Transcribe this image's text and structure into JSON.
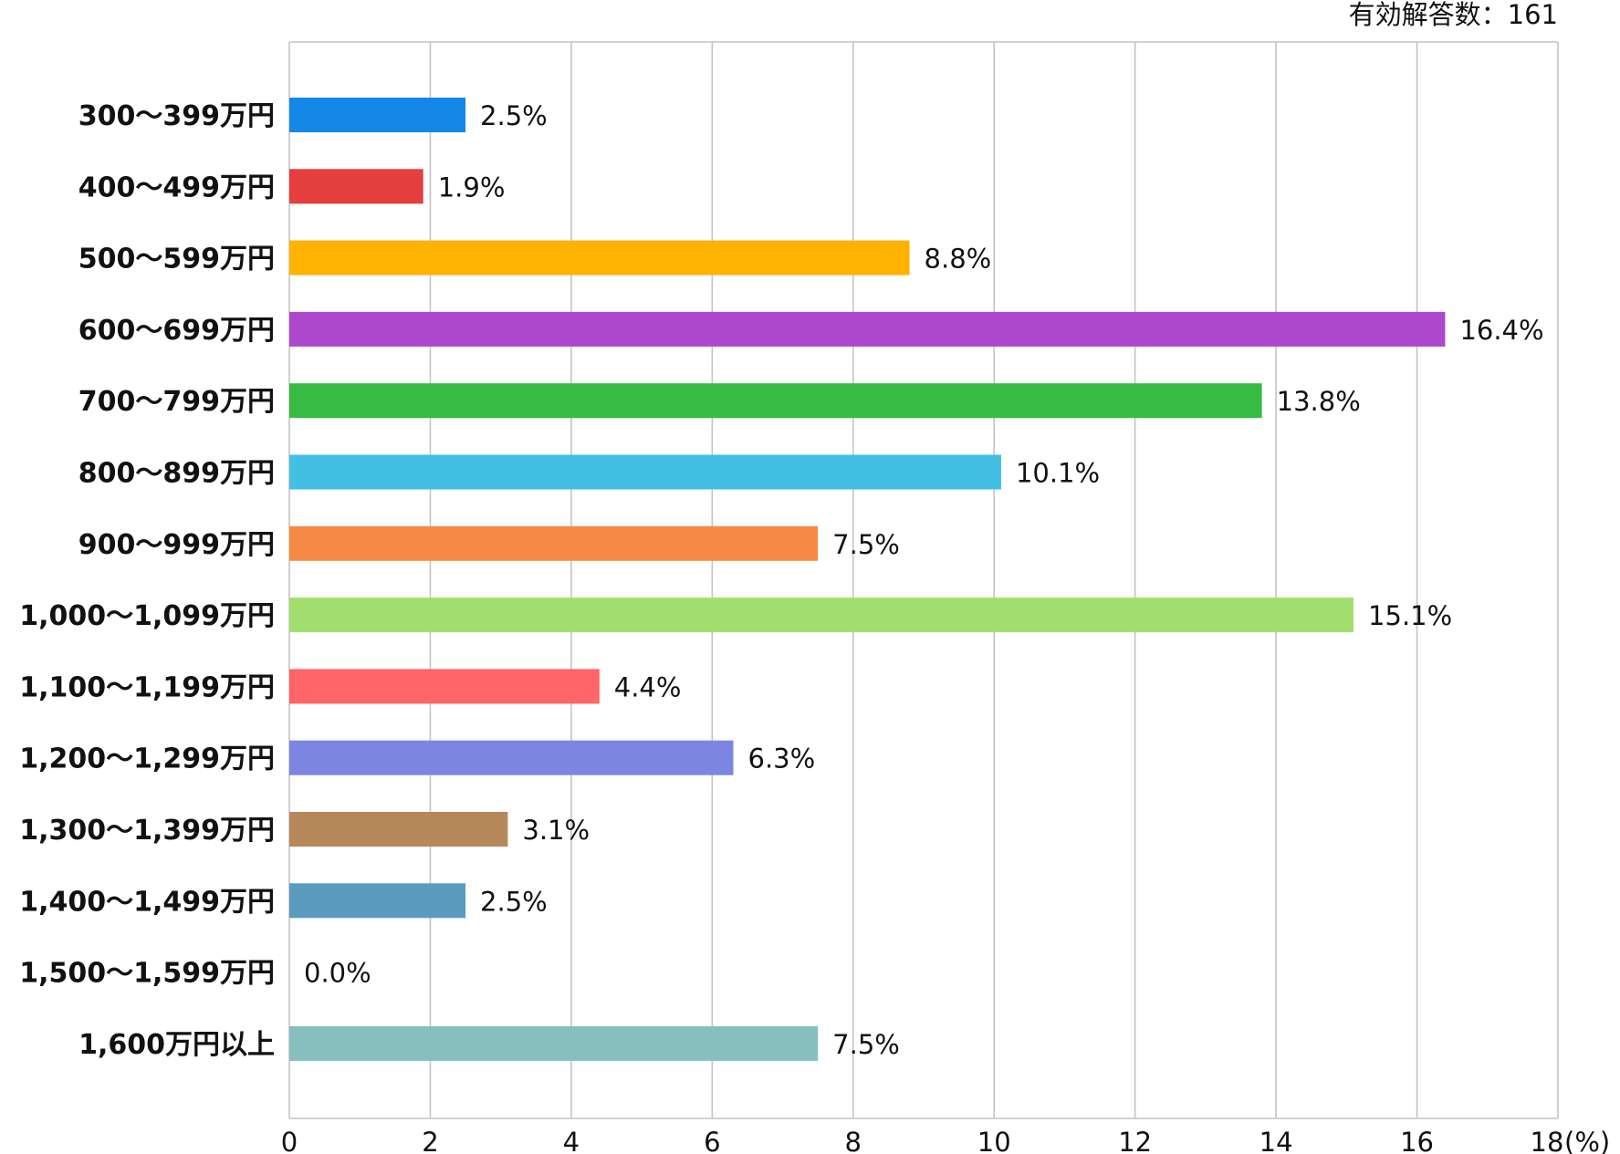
{
  "chart_data": {
    "type": "bar",
    "orientation": "horizontal",
    "note": "有効解答数：161",
    "x_unit": "(%)",
    "xlim": [
      0,
      18
    ],
    "x_ticks": [
      "0",
      "2",
      "4",
      "6",
      "8",
      "10",
      "12",
      "14",
      "16",
      "18"
    ],
    "grid": true,
    "categories": [
      "300～399万円",
      "400～499万円",
      "500～599万円",
      "600～699万円",
      "700～799万円",
      "800～899万円",
      "900～999万円",
      "1,000～1,099万円",
      "1,100～1,199万円",
      "1,200～1,299万円",
      "1,300～1,399万円",
      "1,400～1,499万円",
      "1,500～1,599万円",
      "1,600万円以上"
    ],
    "values": [
      2.5,
      1.9,
      8.8,
      16.4,
      13.8,
      10.1,
      7.5,
      15.1,
      4.4,
      6.3,
      3.1,
      2.5,
      0.0,
      7.5
    ],
    "value_labels": [
      "2.5%",
      "1.9%",
      "8.8%",
      "16.4%",
      "13.8%",
      "10.1%",
      "7.5%",
      "15.1%",
      "4.4%",
      "6.3%",
      "3.1%",
      "2.5%",
      "0.0%",
      "7.5%"
    ],
    "colors": [
      "#1487E6",
      "#E43E3E",
      "#FFB200",
      "#AD47CC",
      "#38BB43",
      "#42BFE2",
      "#F58A45",
      "#A2DF6E",
      "#FF6467",
      "#7C86E2",
      "#B6885A",
      "#5A9BBE",
      "#888888",
      "#87BFBF"
    ]
  }
}
